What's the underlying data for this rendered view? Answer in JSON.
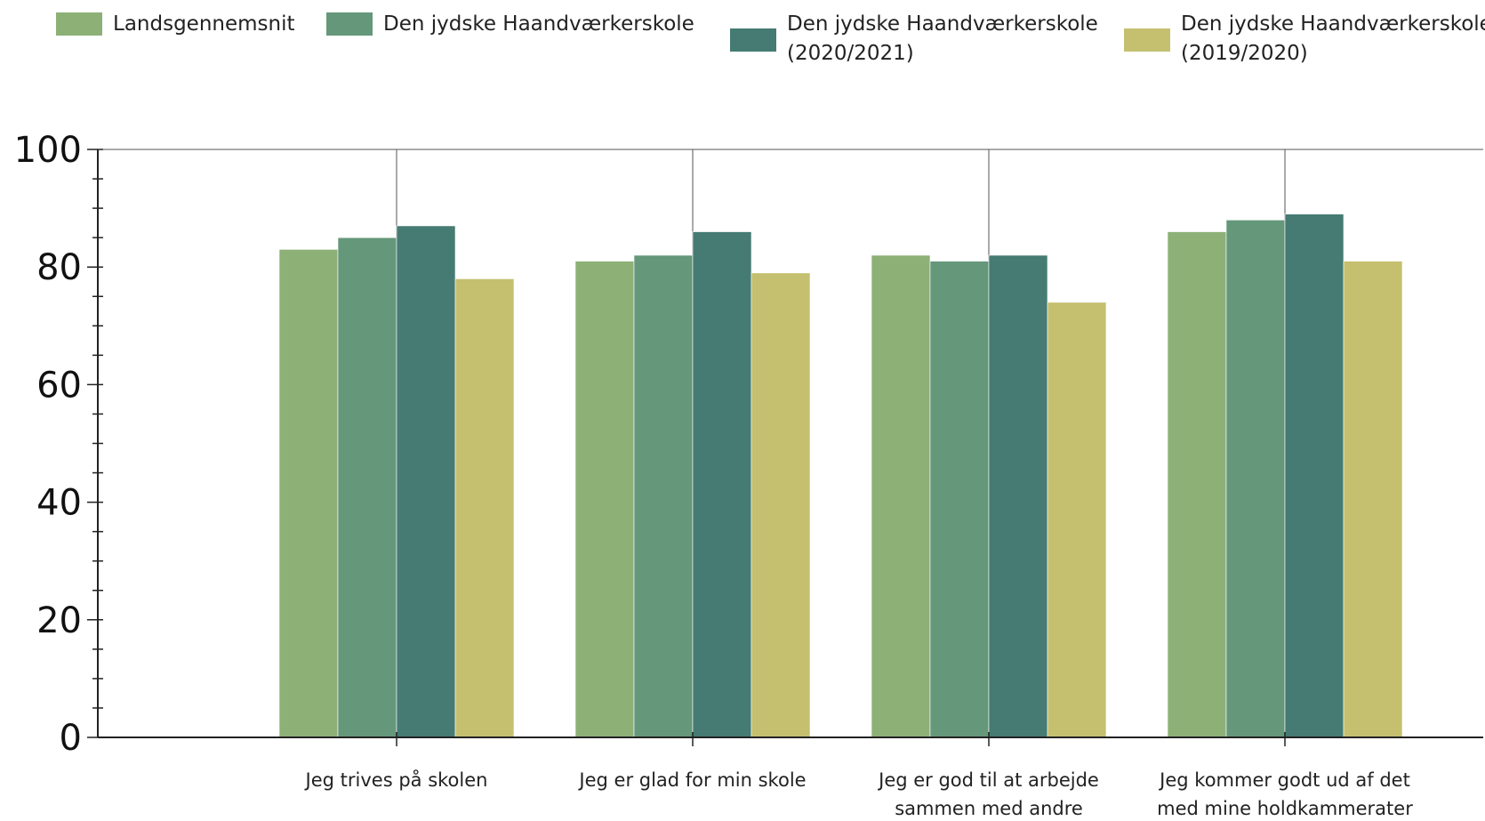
{
  "chart_data": {
    "type": "bar",
    "categories": [
      [
        "Jeg trives på skolen"
      ],
      [
        "Jeg er glad for min skole"
      ],
      [
        "Jeg er god til at arbejde",
        "sammen med andre"
      ],
      [
        "Jeg kommer godt ud af det",
        "med mine holdkammerater"
      ]
    ],
    "series": [
      {
        "name": [
          "Landsgennemsnit"
        ],
        "color": "#8db077",
        "values": [
          83,
          81,
          82,
          86
        ]
      },
      {
        "name": [
          "Den jydske Haandværkerskole"
        ],
        "color": "#65977a",
        "values": [
          85,
          82,
          81,
          88
        ]
      },
      {
        "name": [
          "Den jydske Haandværkerskole",
          "(2020/2021)"
        ],
        "color": "#457b72",
        "values": [
          87,
          86,
          82,
          89
        ]
      },
      {
        "name": [
          "Den jydske Haandværkerskole",
          "(2019/2020)"
        ],
        "color": "#c5c070",
        "values": [
          78,
          79,
          74,
          81
        ]
      }
    ],
    "ylim": [
      0,
      100
    ],
    "yticks": [
      "0",
      "20",
      "40",
      "60",
      "80",
      "100"
    ],
    "legend_position": "top",
    "grid": "vertical lines at category centers"
  }
}
